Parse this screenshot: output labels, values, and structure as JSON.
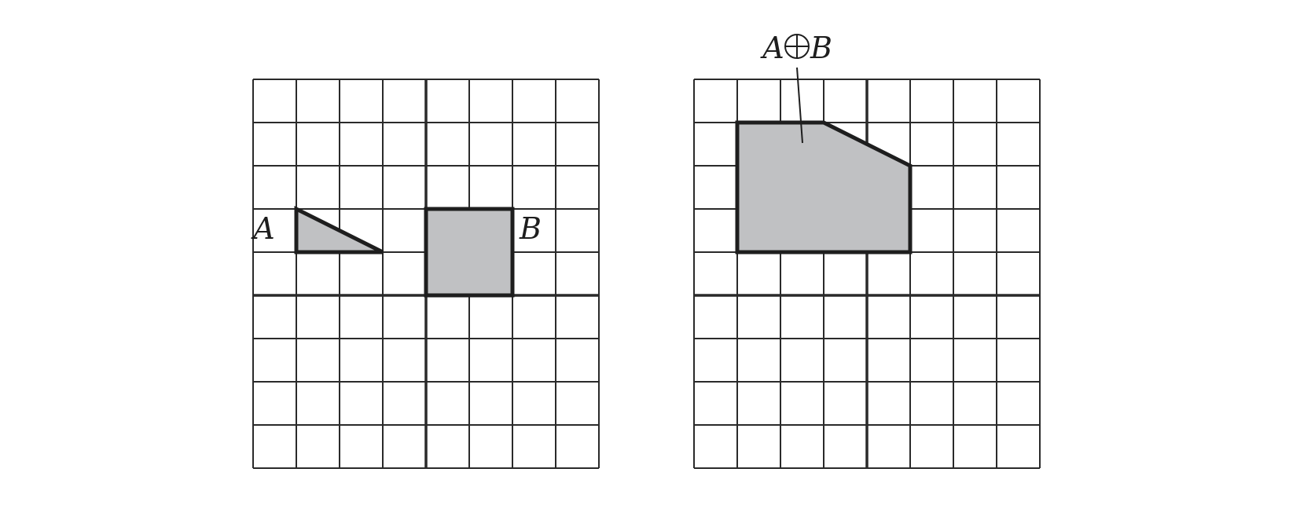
{
  "left_panel": {
    "label_a": "A",
    "label_b": "B",
    "shape_a": [
      [
        -3,
        2
      ],
      [
        -3,
        1
      ],
      [
        -1,
        1
      ]
    ],
    "shape_b": [
      [
        0,
        2
      ],
      [
        2,
        2
      ],
      [
        2,
        0
      ],
      [
        0,
        0
      ]
    ]
  },
  "right_panel": {
    "result_label_left": "A",
    "result_label_right": "B",
    "result_shape": [
      [
        -3,
        4
      ],
      [
        -1,
        4
      ],
      [
        1,
        3
      ],
      [
        1,
        1
      ],
      [
        -3,
        1
      ]
    ]
  },
  "grid": {
    "x_min": -4,
    "x_max": 4,
    "y_min": -4,
    "y_max": 5,
    "x_axis_at": 0,
    "y_axis_at": 0
  },
  "colors": {
    "fill": "#c0c1c3",
    "stroke": "#1e1e1e"
  }
}
